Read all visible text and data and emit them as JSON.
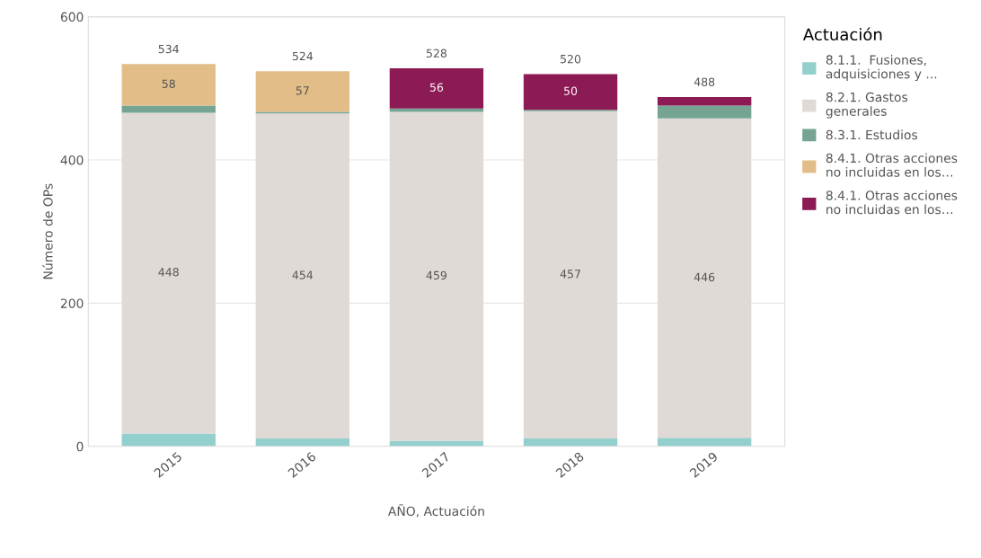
{
  "chart_data": {
    "type": "bar",
    "stacked": true,
    "xlabel": "AÑO, Actuación",
    "ylabel": "Número de OPs",
    "legend_title": "Actuación",
    "categories": [
      "2015",
      "2016",
      "2017",
      "2018",
      "2019"
    ],
    "series": [
      {
        "name": "8.1.1.  Fusiones,\nadquisiciones y ...",
        "color": "#93cfcc",
        "values": [
          18,
          11,
          8,
          11,
          12
        ],
        "value_labels": [
          null,
          null,
          null,
          null,
          null
        ]
      },
      {
        "name": "8.2.1. Gastos\ngenerales",
        "color": "#e0dad7",
        "values": [
          448,
          454,
          459,
          457,
          446
        ],
        "value_labels": [
          "448",
          "454",
          "459",
          "457",
          "446"
        ]
      },
      {
        "name": "8.3.1. Estudios",
        "color": "#75a592",
        "values": [
          10,
          2,
          5,
          2,
          18
        ],
        "value_labels": [
          null,
          null,
          null,
          null,
          null
        ]
      },
      {
        "name": "8.4.1. Otras acciones\nno incluidas en los…",
        "color": "#e3bd87",
        "values": [
          58,
          57,
          null,
          null,
          null
        ],
        "value_labels": [
          "58",
          "57",
          null,
          null,
          null
        ]
      },
      {
        "name": "8.4.1. Otras acciones\nno incluidas en los…",
        "color": "#8c1a55",
        "values": [
          null,
          null,
          56,
          50,
          12
        ],
        "value_labels": [
          null,
          null,
          "56",
          "50",
          null
        ]
      }
    ],
    "totals": [
      "534",
      "524",
      "528",
      "520",
      "488"
    ],
    "ylim": [
      0,
      600
    ],
    "yticks": [
      0,
      200,
      400,
      600
    ],
    "grid": "y",
    "legend": "top right"
  }
}
